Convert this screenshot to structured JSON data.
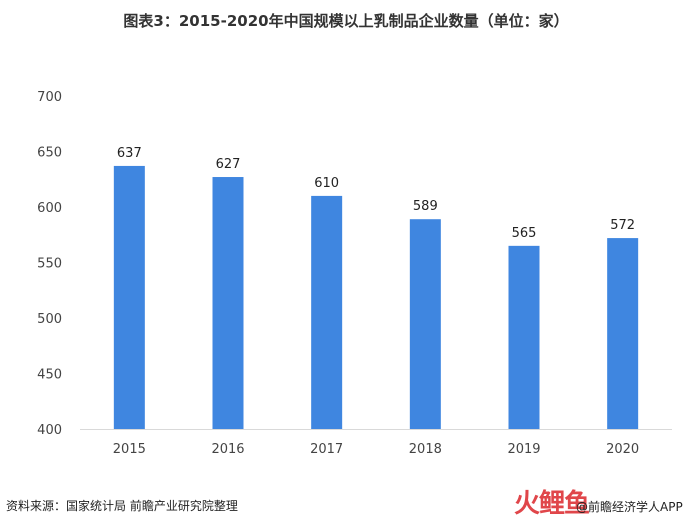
{
  "title": "图表3：2015-2020年中国规模以上乳制品企业数量（单位：家）",
  "source": "资料来源：国家统计局 前瞻产业研究院整理",
  "brand": {
    "logo_text": "火鲤鱼",
    "app_text": "@前瞻经济学人APP"
  },
  "colors": {
    "bar": "#3f86e0",
    "grid": "#d9d9d9",
    "axis_text": "#444444",
    "label_text": "#222222"
  },
  "chart_data": {
    "type": "bar",
    "title": "图表3：2015-2020年中国规模以上乳制品企业数量（单位：家）",
    "xlabel": "",
    "ylabel": "",
    "categories": [
      "2015",
      "2016",
      "2017",
      "2018",
      "2019",
      "2020"
    ],
    "values": [
      637,
      627,
      610,
      589,
      565,
      572
    ],
    "ylim": [
      400,
      700
    ],
    "yticks": [
      400,
      450,
      500,
      550,
      600,
      650,
      700
    ],
    "grid": false,
    "data_labels": true
  }
}
